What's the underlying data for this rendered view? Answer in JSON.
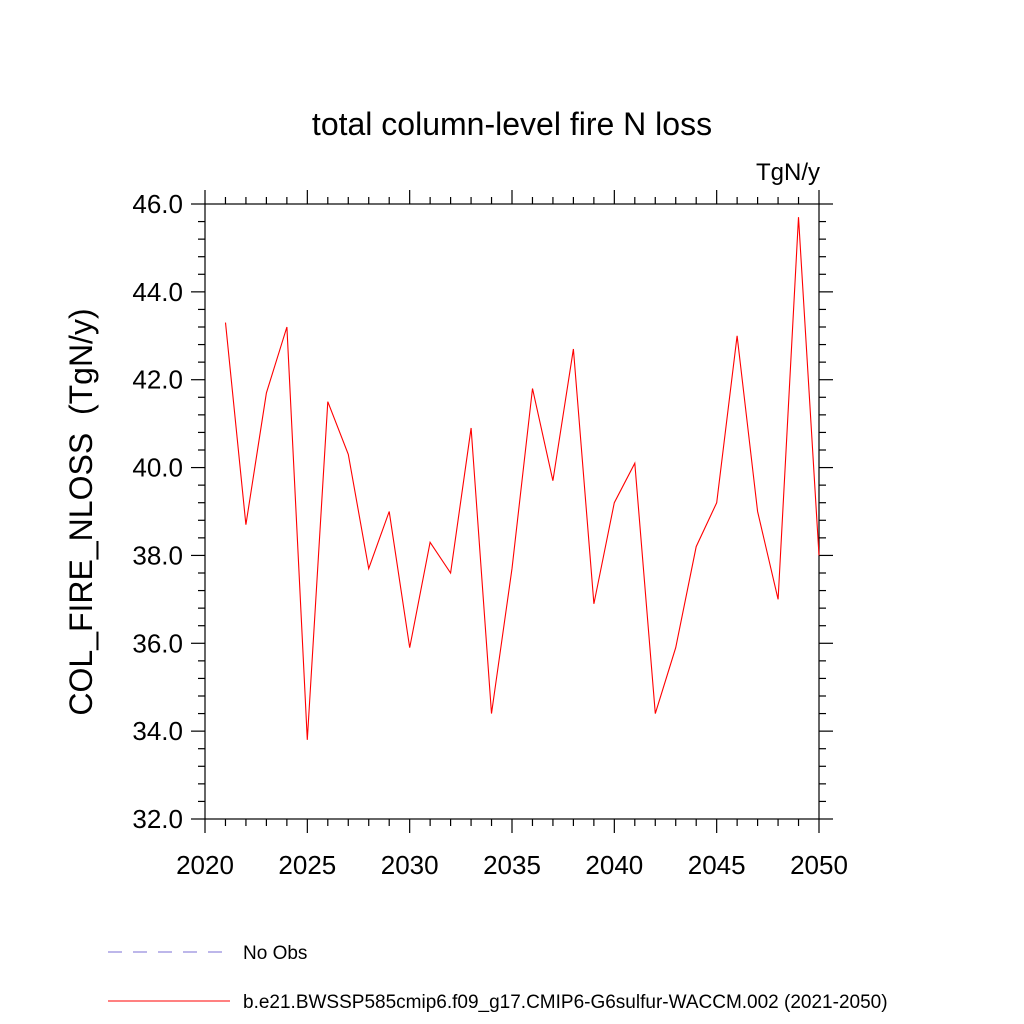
{
  "chart_data": {
    "type": "line",
    "title": "total column-level fire N loss",
    "units_label": "TgN/y",
    "ylabel": "COL_FIRE_NLOSS  (TgN/y)",
    "xlabel": "",
    "xlim": [
      2020,
      2050
    ],
    "ylim": [
      32.0,
      46.0
    ],
    "x_ticks": [
      "2020",
      "2025",
      "2030",
      "2035",
      "2040",
      "2045",
      "2050"
    ],
    "y_ticks": [
      "32.0",
      "34.0",
      "36.0",
      "38.0",
      "40.0",
      "42.0",
      "44.0",
      "46.0"
    ],
    "x_tick_values": [
      2020,
      2025,
      2030,
      2035,
      2040,
      2045,
      2050
    ],
    "y_tick_values": [
      32,
      34,
      36,
      38,
      40,
      42,
      44,
      46
    ],
    "grid": false,
    "legend_position": "bottom-left",
    "series": [
      {
        "name": "b.e21.BWSSP585cmip6.f09_g17.CMIP6-G6sulfur-WACCM.002 (2021-2050)",
        "color": "#ff0000",
        "style": "solid",
        "x": [
          2021,
          2022,
          2023,
          2024,
          2025,
          2026,
          2027,
          2028,
          2029,
          2030,
          2031,
          2032,
          2033,
          2034,
          2035,
          2036,
          2037,
          2038,
          2039,
          2040,
          2041,
          2042,
          2043,
          2044,
          2045,
          2046,
          2047,
          2048,
          2049,
          2050
        ],
        "values": [
          43.3,
          38.7,
          41.7,
          43.2,
          33.8,
          41.5,
          40.3,
          37.7,
          39.0,
          35.9,
          38.3,
          37.6,
          40.9,
          34.4,
          37.7,
          41.8,
          39.7,
          42.7,
          36.9,
          39.2,
          40.1,
          34.4,
          35.9,
          38.2,
          39.2,
          43.0,
          39.0,
          37.0,
          45.7,
          38.0
        ]
      }
    ],
    "legend": [
      {
        "label": "No Obs",
        "color": "#7b6fd6",
        "style": "dashed"
      },
      {
        "label": "b.e21.BWSSP585cmip6.f09_g17.CMIP6-G6sulfur-WACCM.002 (2021-2050)",
        "color": "#ff0000",
        "style": "solid"
      }
    ]
  }
}
